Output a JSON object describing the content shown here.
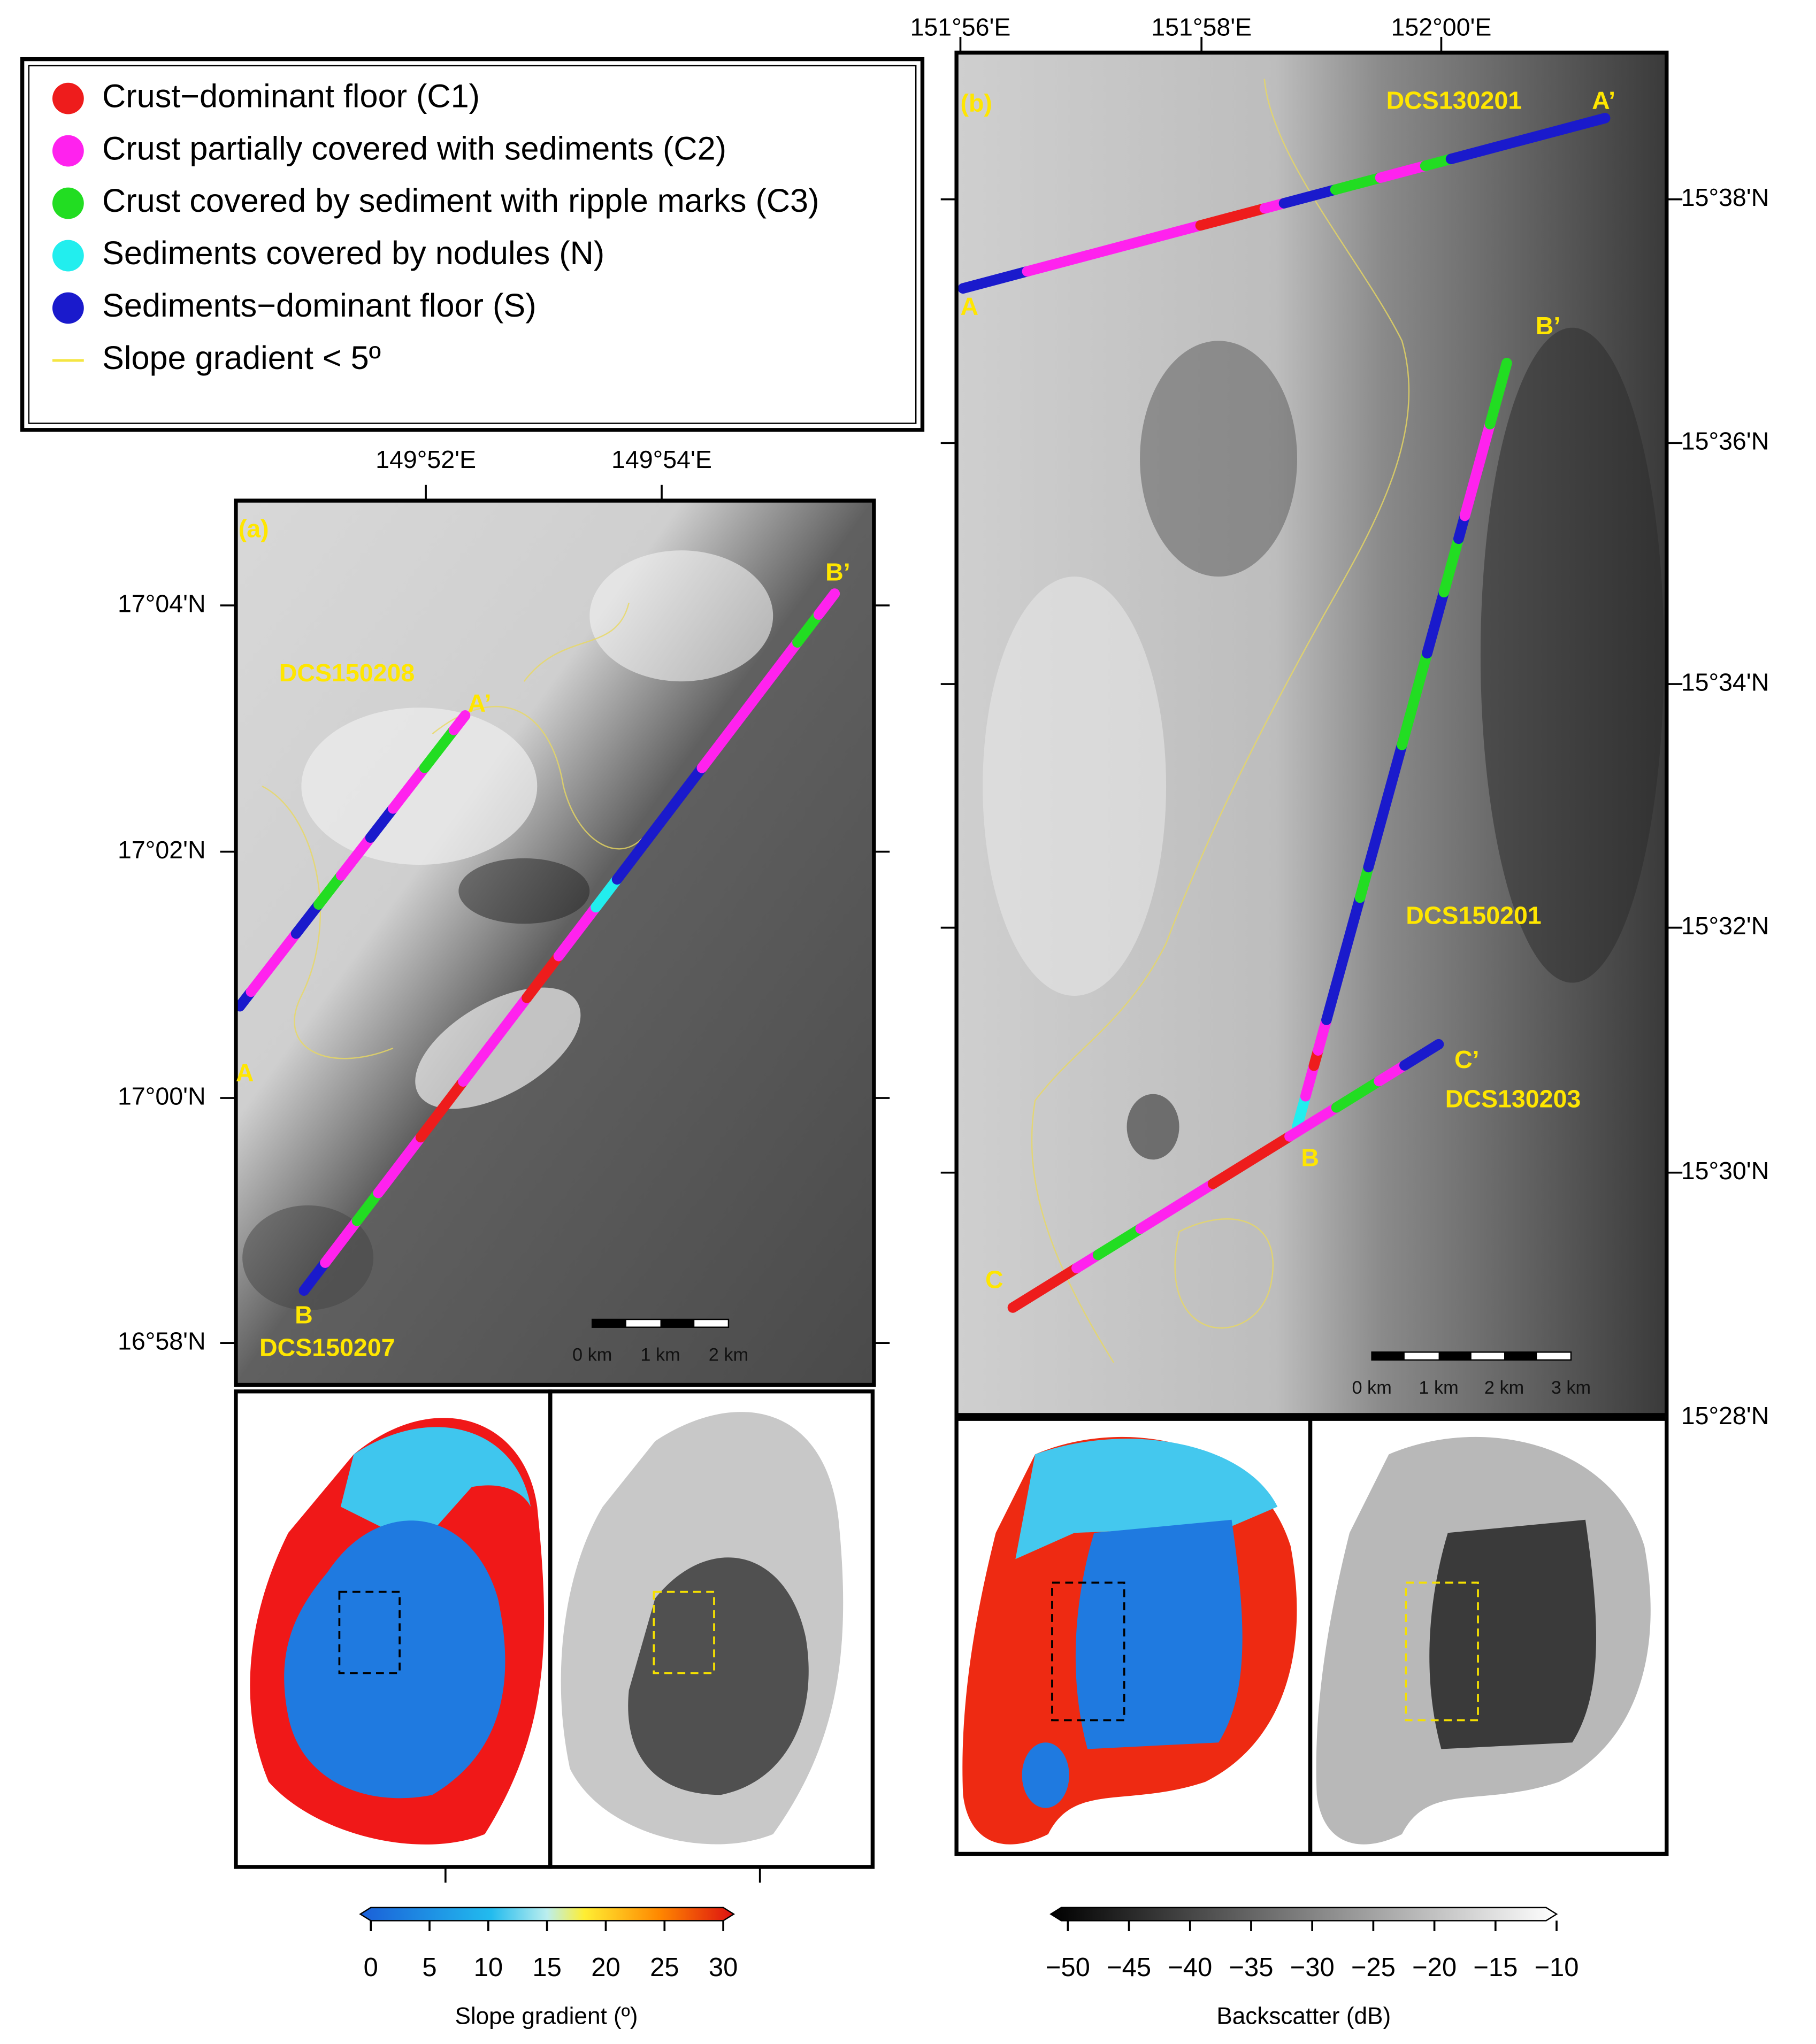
{
  "legend": {
    "items": [
      {
        "label": "Crust−dominant floor (C1)",
        "color": "#ee1c1c"
      },
      {
        "label": "Crust partially covered with sediments (C2)",
        "color": "#ff22ee"
      },
      {
        "label": "Crust covered by sediment with ripple marks (C3)",
        "color": "#22dd22"
      },
      {
        "label": "Sediments covered by nodules (N)",
        "color": "#22eeee"
      },
      {
        "label": "Sediments−dominant floor (S)",
        "color": "#1a1acc"
      }
    ],
    "line_label": "Slope gradient < 5º",
    "line_color": "#f5e642"
  },
  "panel_a": {
    "label": "(a)",
    "x_labels": [
      "149°52'E",
      "149°54'E"
    ],
    "y_labels": [
      "17°04'N",
      "17°02'N",
      "17°00'N",
      "16°58'N"
    ],
    "points": [
      "A",
      "A’",
      "B",
      "B’"
    ],
    "tracks": [
      "DCS150208",
      "DCS150207"
    ],
    "scale_labels": [
      "0 km",
      "1 km",
      "2 km"
    ]
  },
  "panel_b": {
    "label": "(b)",
    "x_labels": [
      "151°56'E",
      "151°58'E",
      "152°00'E"
    ],
    "y_labels": [
      "15°38'N",
      "15°36'N",
      "15°34'N",
      "15°32'N",
      "15°30'N",
      "15°28'N"
    ],
    "points": [
      "A",
      "A’",
      "B",
      "B’",
      "C",
      "C’"
    ],
    "tracks": [
      "DCS130201",
      "DCS150201",
      "DCS130203"
    ],
    "scale_labels": [
      "0 km",
      "1 km",
      "2 km",
      "3 km"
    ]
  },
  "colorbar_slope": {
    "title": "Slope gradient (º)",
    "ticks": [
      0,
      5,
      10,
      15,
      20,
      25,
      30
    ]
  },
  "colorbar_backscatter": {
    "title": "Backscatter (dB)",
    "ticks": [
      {
        "value": -50,
        "label": "−50"
      },
      {
        "value": -45,
        "label": "−45"
      },
      {
        "value": -40,
        "label": "−40"
      },
      {
        "value": -35,
        "label": "−35"
      },
      {
        "value": -30,
        "label": "−30"
      },
      {
        "value": -25,
        "label": "−25"
      },
      {
        "value": -20,
        "label": "−20"
      },
      {
        "value": -15,
        "label": "−15"
      },
      {
        "value": -10,
        "label": "−10"
      }
    ]
  }
}
